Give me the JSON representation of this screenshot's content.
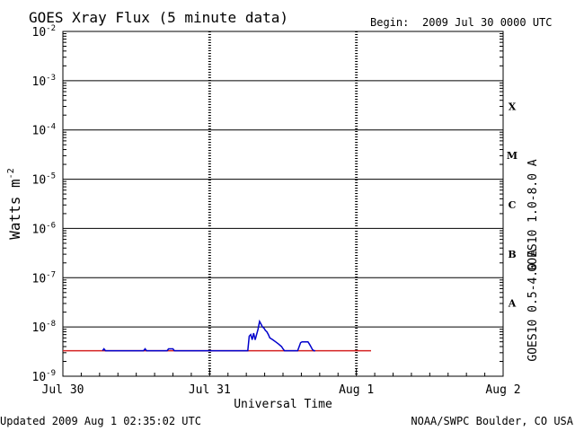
{
  "chart_data": {
    "type": "line",
    "title": "GOES Xray Flux (5 minute data)",
    "begin_label": "Begin:",
    "begin_value": "2009 Jul 30 0000 UTC",
    "xlabel": "Universal Time",
    "ylabel_base": "Watts m",
    "ylabel_exp": "-2",
    "x_ticks": [
      "Jul 30",
      "Jul 31",
      "Aug 1",
      "Aug 2"
    ],
    "xlim_days": [
      0,
      3
    ],
    "ylim": [
      1e-09,
      0.01
    ],
    "yscale": "log",
    "y_ticks": [
      {
        "exp": "-9"
      },
      {
        "exp": "-8"
      },
      {
        "exp": "-7"
      },
      {
        "exp": "-6"
      },
      {
        "exp": "-5"
      },
      {
        "exp": "-4"
      },
      {
        "exp": "-3"
      },
      {
        "exp": "-2"
      }
    ],
    "flare_classes": [
      "A",
      "B",
      "C",
      "M",
      "X"
    ],
    "grid": "horizontal lines at each decade; dashed vertical lines at day boundaries",
    "series": [
      {
        "name": "GOES10 1.0-8.0 A",
        "color": "#d42020",
        "x": [
          0.0,
          1.1,
          2.1
        ],
        "y": [
          3.3e-09,
          3.3e-09,
          3.3e-09
        ]
      },
      {
        "name": "GOES10 0.5-4.0 A",
        "color": "#0000cc",
        "x": [
          0.27,
          0.28,
          0.29,
          0.55,
          0.56,
          0.57,
          0.71,
          0.72,
          0.75,
          0.76,
          1.26,
          1.27,
          1.28,
          1.29,
          1.3,
          1.31,
          1.32,
          1.33,
          1.34,
          1.35,
          1.36,
          1.37,
          1.38,
          1.39,
          1.4,
          1.41,
          1.43,
          1.45,
          1.47,
          1.49,
          1.5,
          1.51,
          1.52,
          1.53,
          1.54,
          1.55,
          1.56,
          1.57,
          1.6,
          1.61,
          1.62,
          1.63,
          1.64,
          1.65,
          1.66,
          1.67,
          1.68,
          1.69,
          1.7,
          1.71,
          1.72
        ],
        "y": [
          3.3e-09,
          3.6e-09,
          3.3e-09,
          3.3e-09,
          3.6e-09,
          3.3e-09,
          3.3e-09,
          3.6e-09,
          3.6e-09,
          3.3e-09,
          3.3e-09,
          6.5e-09,
          7e-09,
          5.5e-09,
          7.5e-09,
          5.5e-09,
          7e-09,
          9e-09,
          1.3e-08,
          1.15e-08,
          1e-08,
          9.5e-09,
          8.5e-09,
          8e-09,
          7e-09,
          6e-09,
          5.5e-09,
          5e-09,
          4.5e-09,
          4e-09,
          3.6e-09,
          3.3e-09,
          3.3e-09,
          3.3e-09,
          3.3e-09,
          3.3e-09,
          3.3e-09,
          3.3e-09,
          3.3e-09,
          4e-09,
          4.8e-09,
          5e-09,
          5e-09,
          5e-09,
          5e-09,
          5e-09,
          4.5e-09,
          4e-09,
          3.5e-09,
          3.3e-09,
          3.3e-09
        ]
      }
    ]
  },
  "footer": {
    "updated": "Updated 2009 Aug  1 02:35:02 UTC",
    "source": "NOAA/SWPC Boulder, CO USA"
  }
}
